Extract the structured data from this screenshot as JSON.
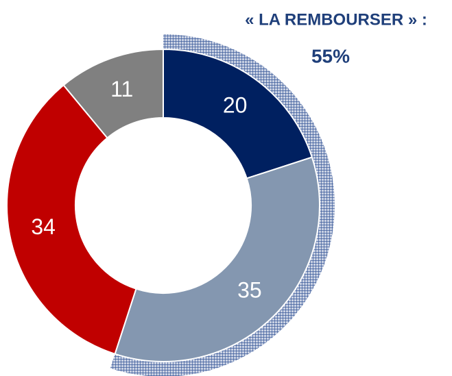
{
  "chart_data": {
    "type": "donut",
    "categories": [
      null,
      null,
      null,
      null
    ],
    "values": [
      20,
      35,
      34,
      11
    ],
    "colors": [
      "#002060",
      "#8497b0",
      "#c00000",
      "#808080"
    ],
    "annotations": [
      "« LA REMBOURSER » :",
      "55%"
    ]
  }
}
